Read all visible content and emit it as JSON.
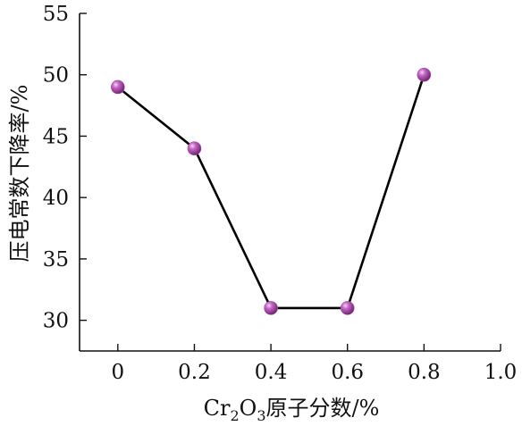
{
  "chart_data": {
    "type": "line",
    "xlabel": "Cr2O3原子分数/%",
    "xlabel_parts": {
      "pre": "Cr",
      "sub1": "2",
      "mid": "O",
      "sub2": "3",
      "post": "原子分数/%"
    },
    "ylabel": "压电常数下降率/%",
    "x": [
      0,
      0.2,
      0.4,
      0.6,
      0.8
    ],
    "y": [
      49,
      44,
      31,
      31,
      50
    ],
    "xlim": [
      -0.1,
      1.0
    ],
    "ylim": [
      27.5,
      55
    ],
    "xticks": [
      0,
      0.2,
      0.4,
      0.6,
      0.8,
      1.0
    ],
    "xtick_labels": [
      "0",
      "0.2",
      "0.4",
      "0.6",
      "0.8",
      "1.0"
    ],
    "yticks": [
      30,
      35,
      40,
      45,
      50,
      55
    ],
    "ytick_labels": [
      "30",
      "35",
      "40",
      "45",
      "50",
      "55"
    ],
    "grid": false,
    "marker_color": "#b04fb0",
    "line_color": "#000000"
  }
}
